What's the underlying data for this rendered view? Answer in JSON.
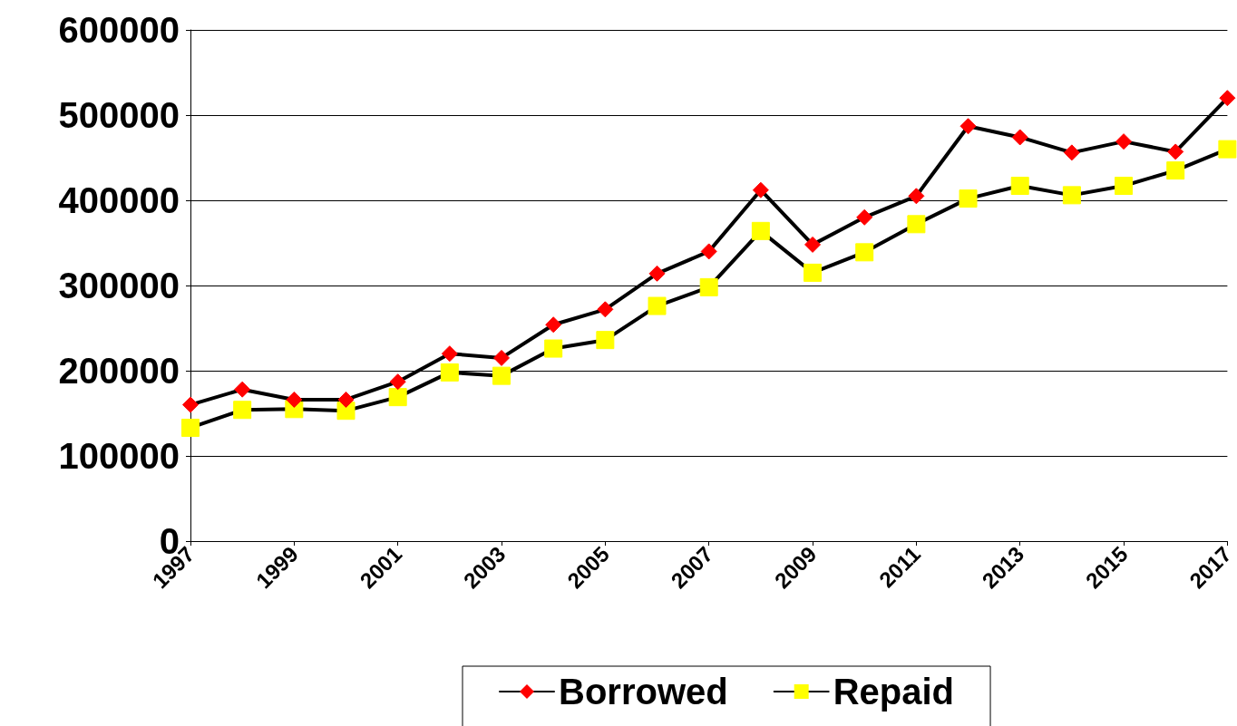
{
  "chart_data": {
    "type": "line",
    "x": [
      1997,
      1998,
      1999,
      2000,
      2001,
      2002,
      2003,
      2004,
      2005,
      2006,
      2007,
      2008,
      2009,
      2010,
      2011,
      2012,
      2013,
      2014,
      2015,
      2016,
      2017
    ],
    "xlim": [
      1997,
      2017
    ],
    "xticks": [
      1997,
      1999,
      2001,
      2003,
      2005,
      2007,
      2009,
      2011,
      2013,
      2015,
      2017
    ],
    "ylim": [
      0,
      600000
    ],
    "yticks": [
      0,
      100000,
      200000,
      300000,
      400000,
      500000,
      600000
    ],
    "grid": "y",
    "legend": "bottom",
    "line_style": "solid",
    "series": [
      {
        "name": "Borrowed",
        "color": "#ff0000",
        "marker": "diamond",
        "values": [
          160000,
          178000,
          166000,
          166000,
          187000,
          220000,
          215000,
          254000,
          272000,
          314000,
          340000,
          412000,
          348000,
          380000,
          405000,
          487000,
          474000,
          456000,
          469000,
          457000,
          520000
        ]
      },
      {
        "name": "Repaid",
        "color": "#ffff00",
        "marker": "square",
        "values": [
          133000,
          154000,
          155000,
          153000,
          169000,
          198000,
          194000,
          226000,
          236000,
          276000,
          298000,
          364000,
          315000,
          339000,
          372000,
          402000,
          417000,
          406000,
          417000,
          435000,
          460000
        ]
      }
    ]
  }
}
